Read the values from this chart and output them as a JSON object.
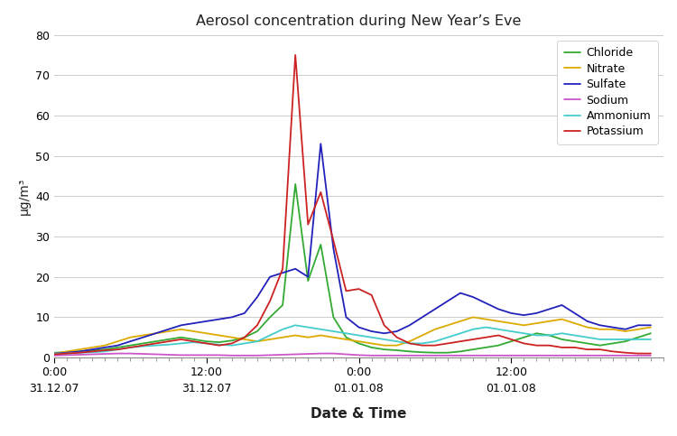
{
  "title": "Aerosol concentration during New Year’s Eve",
  "xlabel": "Date & Time",
  "ylabel": "μg/m³",
  "ylim": [
    0,
    80
  ],
  "yticks": [
    0,
    10,
    20,
    30,
    40,
    50,
    60,
    70,
    80
  ],
  "xtick_positions": [
    0,
    12,
    24,
    36
  ],
  "xtick_labels": [
    "0:00\n31.12.07",
    "12:00\n31.12.07",
    "0:00\n01.01.08",
    "12:00\n01.01.08"
  ],
  "xlim": [
    0,
    48
  ],
  "background_color": "#ffffff",
  "series": [
    {
      "name": "Chloride",
      "color": "#33aa33",
      "x": [
        0,
        1,
        2,
        3,
        4,
        5,
        6,
        7,
        8,
        9,
        10,
        11,
        12,
        13,
        14,
        15,
        16,
        17,
        18,
        19,
        20,
        21,
        22,
        23,
        24,
        25,
        26,
        27,
        28,
        29,
        30,
        31,
        32,
        33,
        34,
        35,
        36,
        37,
        38,
        39,
        40,
        41,
        42,
        43,
        44,
        45,
        46,
        47
      ],
      "y": [
        1.2,
        1.3,
        1.5,
        1.8,
        2.0,
        2.5,
        3.0,
        3.5,
        4.0,
        4.5,
        5.0,
        4.5,
        4.0,
        3.8,
        4.2,
        5.0,
        6.5,
        10.0,
        13.0,
        43.0,
        19.0,
        28.0,
        10.0,
        5.0,
        3.5,
        2.5,
        2.0,
        1.8,
        1.5,
        1.3,
        1.2,
        1.2,
        1.5,
        2.0,
        2.5,
        3.0,
        4.0,
        5.0,
        6.0,
        5.5,
        4.5,
        4.0,
        3.5,
        3.0,
        3.5,
        4.0,
        5.0,
        6.0
      ]
    },
    {
      "name": "Nitrate",
      "color": "#ddaa00",
      "x": [
        0,
        1,
        2,
        3,
        4,
        5,
        6,
        7,
        8,
        9,
        10,
        11,
        12,
        13,
        14,
        15,
        16,
        17,
        18,
        19,
        20,
        21,
        22,
        23,
        24,
        25,
        26,
        27,
        28,
        29,
        30,
        31,
        32,
        33,
        34,
        35,
        36,
        37,
        38,
        39,
        40,
        41,
        42,
        43,
        44,
        45,
        46,
        47
      ],
      "y": [
        1.0,
        1.5,
        2.0,
        2.5,
        3.0,
        4.0,
        5.0,
        5.5,
        6.0,
        6.5,
        7.0,
        6.5,
        6.0,
        5.5,
        5.0,
        4.5,
        4.0,
        4.5,
        5.0,
        5.5,
        5.0,
        5.5,
        5.0,
        4.5,
        4.0,
        3.5,
        3.0,
        3.0,
        4.0,
        5.5,
        7.0,
        8.0,
        9.0,
        10.0,
        9.5,
        9.0,
        8.5,
        8.0,
        8.5,
        9.0,
        9.5,
        8.5,
        7.5,
        7.0,
        7.0,
        6.5,
        7.0,
        7.5
      ]
    },
    {
      "name": "Sulfate",
      "color": "#2222bb",
      "x": [
        0,
        1,
        2,
        3,
        4,
        5,
        6,
        7,
        8,
        9,
        10,
        11,
        12,
        13,
        14,
        15,
        16,
        17,
        18,
        19,
        20,
        21,
        22,
        23,
        24,
        25,
        26,
        27,
        28,
        29,
        30,
        31,
        32,
        33,
        34,
        35,
        36,
        37,
        38,
        39,
        40,
        41,
        42,
        43,
        44,
        45,
        46,
        47
      ],
      "y": [
        1.0,
        1.2,
        1.5,
        2.0,
        2.5,
        3.0,
        4.0,
        5.0,
        6.0,
        7.0,
        8.0,
        8.5,
        9.0,
        9.5,
        10.0,
        11.0,
        15.0,
        20.0,
        21.0,
        22.0,
        20.0,
        53.0,
        27.0,
        10.0,
        7.5,
        6.5,
        6.0,
        6.5,
        8.0,
        10.0,
        12.0,
        14.0,
        16.0,
        15.0,
        13.5,
        12.0,
        11.0,
        10.5,
        11.0,
        12.0,
        13.0,
        11.0,
        9.0,
        8.0,
        7.5,
        7.0,
        8.0,
        8.0
      ]
    },
    {
      "name": "Sodium",
      "color": "#cc55cc",
      "x": [
        0,
        1,
        2,
        3,
        4,
        5,
        6,
        7,
        8,
        9,
        10,
        11,
        12,
        13,
        14,
        15,
        16,
        17,
        18,
        19,
        20,
        21,
        22,
        23,
        24,
        25,
        26,
        27,
        28,
        29,
        30,
        31,
        32,
        33,
        34,
        35,
        36,
        37,
        38,
        39,
        40,
        41,
        42,
        43,
        44,
        45,
        46,
        47
      ],
      "y": [
        0.5,
        0.6,
        0.7,
        0.8,
        0.9,
        1.0,
        1.0,
        0.9,
        0.8,
        0.7,
        0.6,
        0.6,
        0.6,
        0.6,
        0.5,
        0.5,
        0.5,
        0.6,
        0.7,
        0.8,
        0.9,
        1.0,
        1.0,
        0.8,
        0.6,
        0.5,
        0.5,
        0.5,
        0.5,
        0.5,
        0.5,
        0.5,
        0.5,
        0.5,
        0.5,
        0.5,
        0.5,
        0.5,
        0.5,
        0.5,
        0.5,
        0.5,
        0.5,
        0.5,
        0.5,
        0.5,
        0.5,
        0.5
      ]
    },
    {
      "name": "Ammonium",
      "color": "#44cccc",
      "x": [
        0,
        1,
        2,
        3,
        4,
        5,
        6,
        7,
        8,
        9,
        10,
        11,
        12,
        13,
        14,
        15,
        16,
        17,
        18,
        19,
        20,
        21,
        22,
        23,
        24,
        25,
        26,
        27,
        28,
        29,
        30,
        31,
        32,
        33,
        34,
        35,
        36,
        37,
        38,
        39,
        40,
        41,
        42,
        43,
        44,
        45,
        46,
        47
      ],
      "y": [
        1.0,
        1.0,
        1.2,
        1.3,
        1.5,
        2.0,
        2.5,
        2.8,
        3.0,
        3.2,
        3.5,
        3.8,
        3.5,
        3.2,
        3.0,
        3.5,
        4.0,
        5.5,
        7.0,
        8.0,
        7.5,
        7.0,
        6.5,
        6.0,
        5.5,
        5.0,
        4.5,
        4.0,
        3.5,
        3.5,
        4.0,
        5.0,
        6.0,
        7.0,
        7.5,
        7.0,
        6.5,
        6.0,
        5.5,
        5.5,
        6.0,
        5.5,
        5.0,
        4.5,
        4.5,
        4.5,
        4.5,
        4.5
      ]
    },
    {
      "name": "Potassium",
      "color": "#cc2222",
      "x": [
        0,
        1,
        2,
        3,
        4,
        5,
        6,
        7,
        8,
        9,
        10,
        11,
        12,
        13,
        14,
        15,
        16,
        17,
        18,
        19,
        20,
        21,
        22,
        23,
        24,
        25,
        26,
        27,
        28,
        29,
        30,
        31,
        32,
        33,
        34,
        35,
        36,
        37,
        38,
        39,
        40,
        41,
        42,
        43,
        44,
        45,
        46,
        47
      ],
      "y": [
        0.8,
        1.0,
        1.2,
        1.5,
        1.8,
        2.0,
        2.5,
        3.0,
        3.5,
        4.0,
        4.5,
        4.0,
        3.5,
        3.0,
        3.5,
        5.0,
        8.0,
        14.0,
        22.0,
        75.0,
        33.0,
        41.0,
        29.0,
        16.5,
        17.0,
        15.5,
        8.0,
        5.0,
        3.5,
        3.0,
        3.0,
        3.5,
        4.0,
        4.5,
        5.0,
        5.5,
        4.5,
        3.5,
        3.0,
        3.0,
        2.5,
        2.5,
        2.0,
        2.0,
        1.5,
        1.2,
        1.0,
        1.0
      ]
    }
  ]
}
